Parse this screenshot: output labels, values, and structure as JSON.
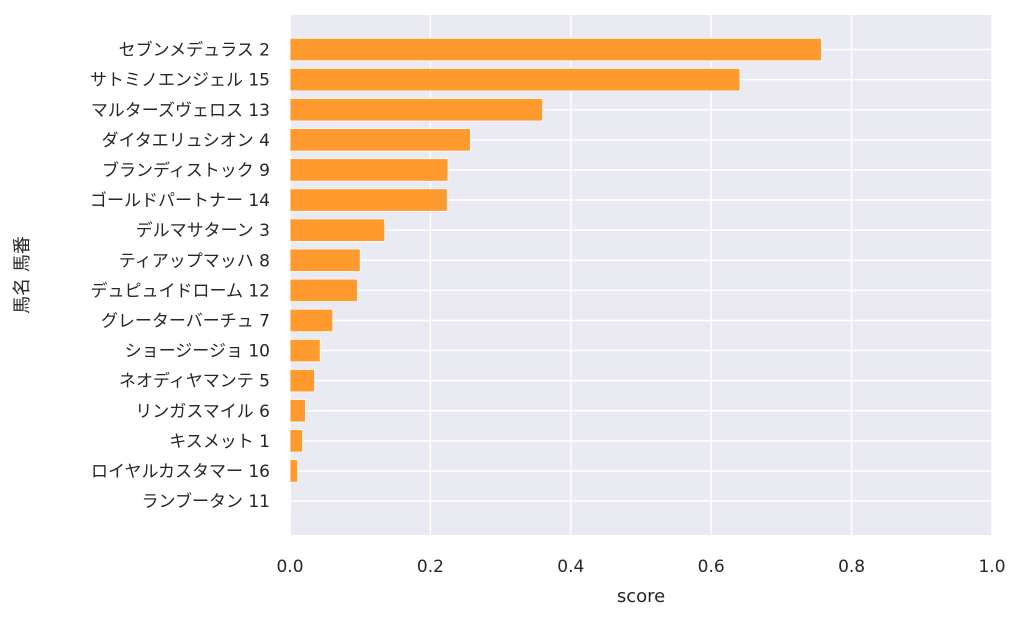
{
  "chart_data": {
    "type": "bar",
    "orientation": "horizontal",
    "xlabel": "score",
    "ylabel": "馬名 馬番",
    "xlim": [
      0.0,
      1.0
    ],
    "xticks": [
      "0.0",
      "0.2",
      "0.4",
      "0.6",
      "0.8",
      "1.0"
    ],
    "grid": true,
    "colors": {
      "background": "#eaeaf2",
      "grid": "#ffffff",
      "bar": "#ff9a2e",
      "text": "#262626"
    },
    "categories": [
      "セブンメデュラス 2",
      "サトミノエンジェル 15",
      "マルターズヴェロス 13",
      "ダイタエリュシオン 4",
      "ブランディストック 9",
      "ゴールドパートナー 14",
      "デルマサターン 3",
      "ティアップマッハ 8",
      "デュピュイドローム 12",
      "グレーターバーチュ 7",
      "ショージージョ 10",
      "ネオディヤマンテ 5",
      "リンガスマイル 6",
      "キスメット 1",
      "ロイヤルカスタマー 16",
      "ランブータン 11"
    ],
    "values": [
      0.757,
      0.641,
      0.36,
      0.257,
      0.225,
      0.224,
      0.135,
      0.1,
      0.096,
      0.061,
      0.043,
      0.035,
      0.022,
      0.018,
      0.011,
      0.001
    ]
  }
}
